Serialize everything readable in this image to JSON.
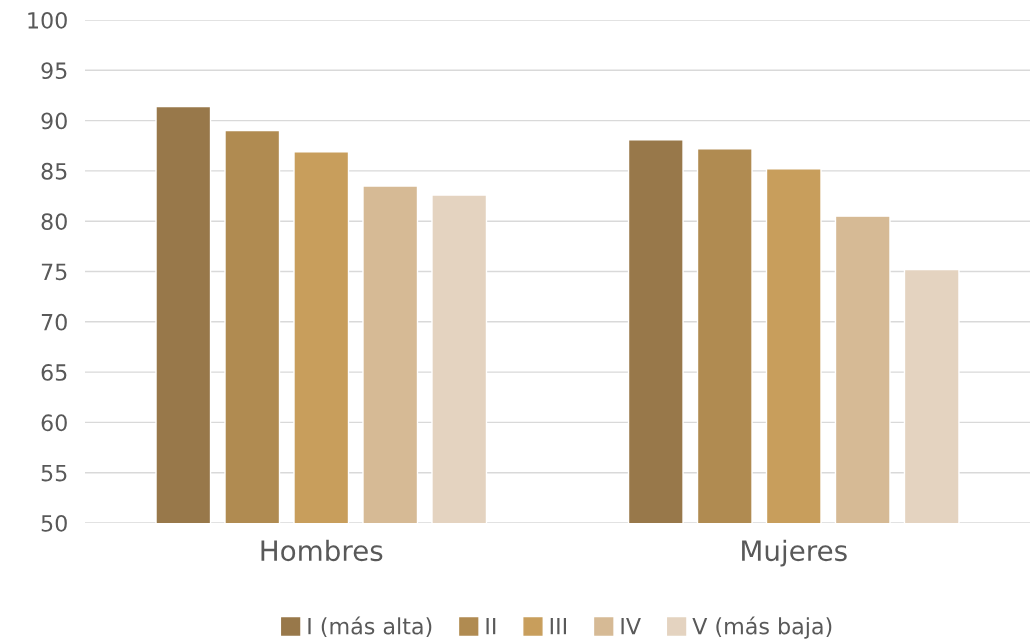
{
  "chart_data": {
    "type": "bar",
    "categories": [
      "Hombres",
      "Mujeres"
    ],
    "series": [
      {
        "name": "I (más alta)",
        "color": "#98784a",
        "values": [
          91.4,
          88.1
        ]
      },
      {
        "name": "II",
        "color": "#b08b51",
        "values": [
          89.0,
          87.2
        ]
      },
      {
        "name": "III",
        "color": "#c89e5c",
        "values": [
          86.9,
          85.2
        ]
      },
      {
        "name": "IV",
        "color": "#d6ba95",
        "values": [
          83.5,
          80.5
        ]
      },
      {
        "name": "V (más baja)",
        "color": "#e4d3c0",
        "values": [
          82.6,
          75.2
        ]
      }
    ],
    "ylim": [
      50,
      100
    ],
    "yticks": [
      50,
      55,
      60,
      65,
      70,
      75,
      80,
      85,
      90,
      95,
      100
    ],
    "grid": "y",
    "legend": "bottom"
  }
}
